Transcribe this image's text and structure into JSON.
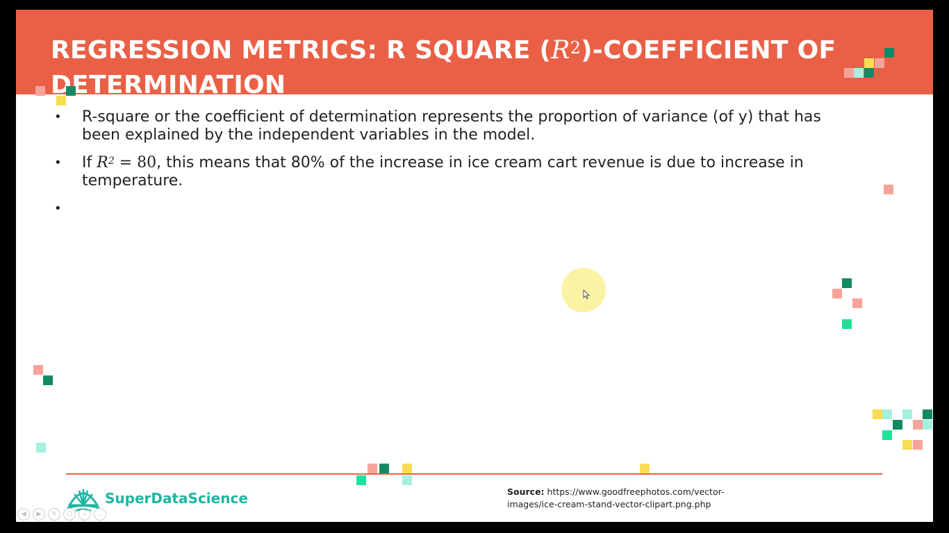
{
  "slide": {
    "title": {
      "prefix": "REGRESSION METRICS: R SQUARE (",
      "math_base": "R",
      "math_exp": "2",
      "suffix": ")-COEFFICIENT OF DETERMINATION"
    },
    "bullets": [
      {
        "text": "R-square or the coefficient of determination represents the proportion of variance (of y) that has been explained by the independent variables in the model."
      },
      {
        "lead": "If ",
        "math_base": "R",
        "math_exp": "2",
        "math_rest": " = 80",
        "text": ", this means that 80% of the increase in ice cream cart revenue is due to increase in temperature."
      },
      {
        "text": ""
      }
    ],
    "bullet_glyph": "•",
    "source": {
      "label": "Source:",
      "text": " https://www.goodfreephotos.com/vector-images/ice-cream-stand-vector-clipart.png.php"
    },
    "logo": {
      "text": "SuperDataScience",
      "icon": "shell-logo-icon"
    }
  },
  "player_controls": [
    {
      "icon": "previous-icon",
      "glyph": "◀"
    },
    {
      "icon": "next-icon",
      "glyph": "▶"
    },
    {
      "icon": "pen-icon",
      "glyph": "✎"
    },
    {
      "icon": "slides-icon",
      "glyph": "▢"
    },
    {
      "icon": "zoom-icon",
      "glyph": "⌕"
    },
    {
      "icon": "more-icon",
      "glyph": "…"
    }
  ],
  "colors": {
    "accent": "#ea6046",
    "brand_teal": "#1fb5a3",
    "pixel_salmon": "#f6a49b",
    "pixel_dark_green": "#138a64",
    "pixel_green": "#1ee29a",
    "pixel_mint": "#a4f1df",
    "pixel_yellow": "#f8dd54"
  }
}
